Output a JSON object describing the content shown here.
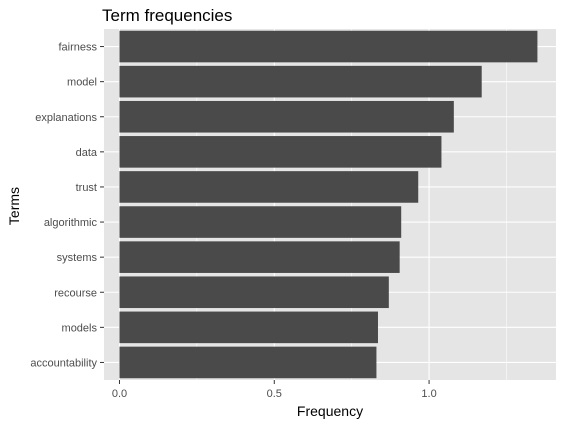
{
  "chart_data": {
    "type": "bar",
    "orientation": "horizontal",
    "title": "Term frequencies",
    "xlabel": "Frequency",
    "ylabel": "Terms",
    "categories": [
      "fairness",
      "model",
      "explanations",
      "data",
      "trust",
      "algorithmic",
      "systems",
      "recourse",
      "models",
      "accountability"
    ],
    "values": [
      1.35,
      1.17,
      1.08,
      1.04,
      0.965,
      0.91,
      0.905,
      0.87,
      0.835,
      0.83
    ],
    "xticks": [
      "0.0",
      "0.5",
      "1.0"
    ],
    "xlim": [
      -0.05,
      1.41
    ],
    "grid": true,
    "colors": {
      "panel_background": "#e5e5e5",
      "gridline": "#ffffff",
      "bar": "#4a4a4a",
      "tick_label": "#4d4d4d",
      "tick_mark": "#333333"
    }
  }
}
